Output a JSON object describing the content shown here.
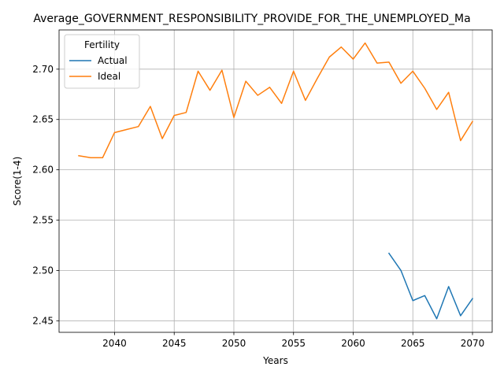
{
  "chart_data": {
    "type": "line",
    "title": "Average_GOVERNMENT_RESPONSIBILITY_PROVIDE_FOR_THE_UNEMPLOYED_Ma",
    "xlabel": "Years",
    "ylabel": "Score(1-4)",
    "xlim": [
      2035.35,
      2071.65
    ],
    "ylim": [
      2.4385,
      2.739
    ],
    "xticks": [
      2040,
      2045,
      2050,
      2055,
      2060,
      2065,
      2070
    ],
    "yticks": [
      2.45,
      2.5,
      2.55,
      2.6,
      2.65,
      2.7
    ],
    "xtick_labels": [
      "2040",
      "2045",
      "2050",
      "2055",
      "2060",
      "2065",
      "2070"
    ],
    "ytick_labels": [
      "2.45",
      "2.50",
      "2.55",
      "2.60",
      "2.65",
      "2.70"
    ],
    "grid": true,
    "legend": {
      "title": "Fertility",
      "position": "upper-left"
    },
    "series": [
      {
        "name": "Actual",
        "color": "#1f77b4",
        "x": [
          2063,
          2064,
          2065,
          2066,
          2067,
          2068,
          2069,
          2070
        ],
        "values": [
          2.517,
          2.5,
          2.47,
          2.475,
          2.452,
          2.484,
          2.455,
          2.472
        ]
      },
      {
        "name": "Ideal",
        "color": "#ff7f0e",
        "x": [
          2037,
          2038,
          2039,
          2040,
          2041,
          2042,
          2043,
          2044,
          2045,
          2046,
          2047,
          2048,
          2049,
          2050,
          2051,
          2052,
          2053,
          2054,
          2055,
          2056,
          2057,
          2058,
          2059,
          2060,
          2061,
          2062,
          2063,
          2064,
          2065,
          2066,
          2067,
          2068,
          2069,
          2070
        ],
        "values": [
          2.614,
          2.612,
          2.612,
          2.637,
          2.64,
          2.643,
          2.663,
          2.631,
          2.654,
          2.657,
          2.698,
          2.679,
          2.699,
          2.652,
          2.688,
          2.674,
          2.682,
          2.666,
          2.698,
          2.669,
          2.691,
          2.712,
          2.722,
          2.71,
          2.726,
          2.706,
          2.707,
          2.686,
          2.698,
          2.681,
          2.66,
          2.677,
          2.629,
          2.648
        ]
      }
    ]
  }
}
